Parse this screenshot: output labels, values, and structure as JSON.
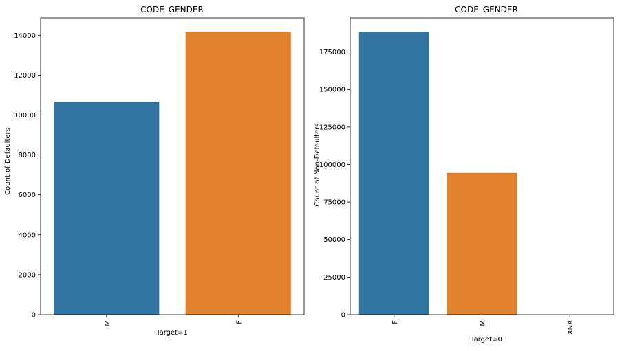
{
  "chart_data": [
    {
      "type": "bar",
      "title": "CODE_GENDER",
      "xlabel": "Target=1",
      "ylabel": "Count of Defaulters",
      "categories": [
        "M",
        "F"
      ],
      "values": [
        10655,
        14170
      ],
      "colors": [
        "#3274a1",
        "#e1812c"
      ],
      "ylim": [
        0,
        14870
      ],
      "yticks": [
        "0",
        "2000",
        "4000",
        "6000",
        "8000",
        "10000",
        "12000",
        "14000"
      ],
      "ytick_values": [
        0,
        2000,
        4000,
        6000,
        8000,
        10000,
        12000,
        14000
      ],
      "grid": false,
      "legend": "none"
    },
    {
      "type": "bar",
      "title": "CODE_GENDER",
      "xlabel": "Target=0",
      "ylabel": "Count of Non-Defaulters",
      "categories": [
        "F",
        "M",
        "XNA"
      ],
      "values": [
        188278,
        94404,
        4
      ],
      "colors": [
        "#3274a1",
        "#e1812c",
        "#3a923a"
      ],
      "ylim": [
        0,
        197700
      ],
      "yticks": [
        "0",
        "25000",
        "50000",
        "75000",
        "100000",
        "125000",
        "150000",
        "175000"
      ],
      "ytick_values": [
        0,
        25000,
        50000,
        75000,
        100000,
        125000,
        150000,
        175000
      ],
      "grid": false,
      "legend": "none"
    }
  ]
}
